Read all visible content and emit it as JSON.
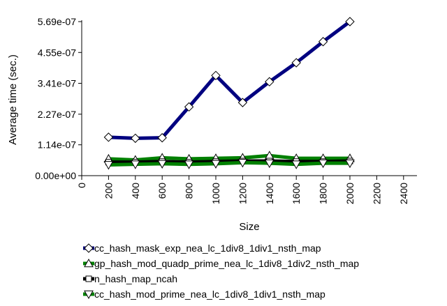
{
  "chart_data": {
    "type": "line",
    "xlabel": "Size",
    "ylabel": "Average time (sec.)",
    "xlim": [
      0,
      2500
    ],
    "ylim": [
      0,
      5.69e-07
    ],
    "x_ticks": [
      0,
      200,
      400,
      600,
      800,
      1000,
      1200,
      1400,
      1600,
      1800,
      2000,
      2200,
      2400
    ],
    "x_tick_labels": [
      "0",
      "200",
      "400",
      "600",
      "800",
      "1000",
      "1200",
      "1400",
      "1600",
      "1800",
      "2000",
      "2200",
      "2400"
    ],
    "y_ticks": [
      0,
      1.14e-07,
      2.27e-07,
      3.41e-07,
      4.55e-07,
      5.69e-07
    ],
    "y_tick_labels": [
      "0.00e+00",
      "1.14e-07",
      "2.27e-07",
      "3.41e-07",
      "4.55e-07",
      "5.69e-07"
    ],
    "grid": false,
    "legend_position": "bottom",
    "x": [
      200,
      400,
      600,
      800,
      1000,
      1200,
      1400,
      1600,
      1800,
      2000
    ],
    "series": [
      {
        "name": "cc_hash_mask_exp_nea_lc_1div8_1div1_nsth_map",
        "color": "#000080",
        "marker": "diamond",
        "values": [
          1.42e-07,
          1.38e-07,
          1.4e-07,
          2.54e-07,
          3.7e-07,
          2.7e-07,
          3.47e-07,
          4.17e-07,
          4.95e-07,
          5.69e-07
        ]
      },
      {
        "name": "gp_hash_mod_quadp_prime_nea_lc_1div8_1div2_nsth_map",
        "color": "#008000",
        "marker": "triangle-up",
        "values": [
          6.2e-08,
          5.8e-08,
          6.6e-08,
          6.2e-08,
          6.4e-08,
          6.6e-08,
          7.4e-08,
          6.4e-08,
          6.4e-08,
          6.4e-08
        ]
      },
      {
        "name": "n_hash_map_ncah",
        "color": "#000000",
        "marker": "square",
        "values": [
          5e-08,
          5e-08,
          5.2e-08,
          5e-08,
          5.2e-08,
          5.4e-08,
          5.4e-08,
          5.2e-08,
          5.2e-08,
          5.4e-08
        ]
      },
      {
        "name": "cc_hash_mod_prime_nea_lc_1div8_1div1_nsth_map",
        "color": "#008000",
        "marker": "triangle-down",
        "values": [
          4e-08,
          4.2e-08,
          4.4e-08,
          4.2e-08,
          4.4e-08,
          4.8e-08,
          4.6e-08,
          4.2e-08,
          4.6e-08,
          4.6e-08
        ]
      }
    ]
  }
}
